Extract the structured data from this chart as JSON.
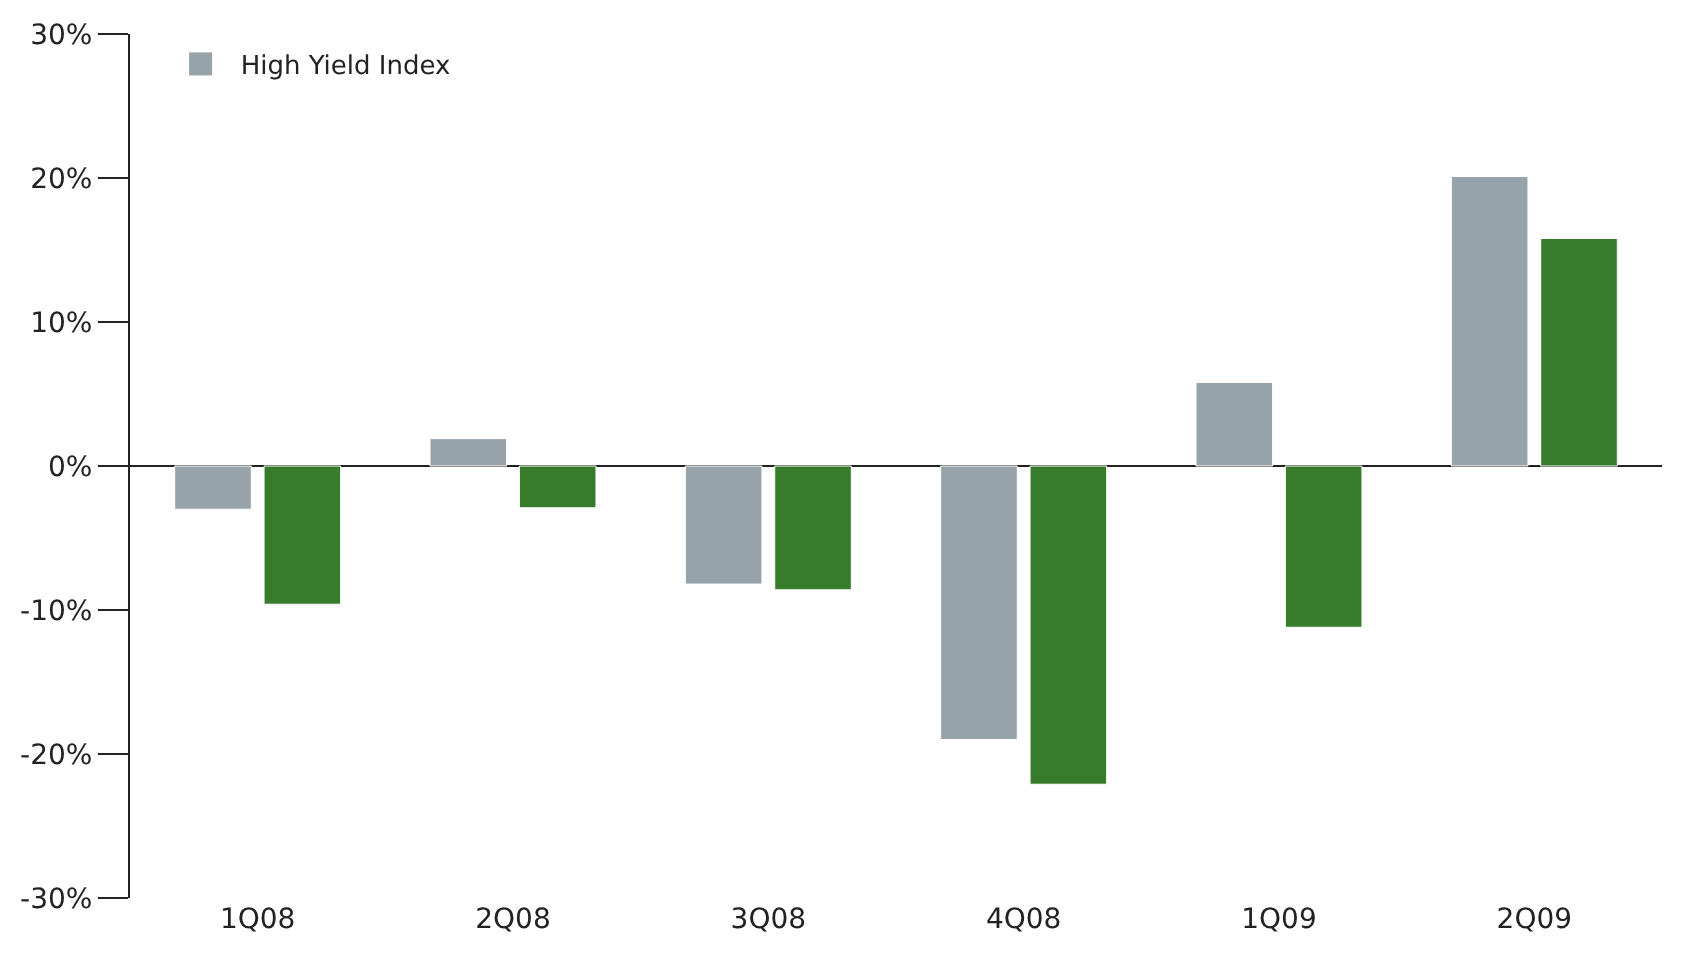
{
  "chart_data": {
    "type": "bar",
    "categories": [
      "1Q08",
      "2Q08",
      "3Q08",
      "4Q08",
      "1Q09",
      "2Q09"
    ],
    "series": [
      {
        "name": "High Yield Index",
        "color": "#97a3ab",
        "values": [
          -3.0,
          1.9,
          -8.2,
          -19.0,
          5.8,
          20.1
        ]
      },
      {
        "color": "#367c2b",
        "values": [
          -9.6,
          -2.9,
          -8.6,
          -22.1,
          -11.2,
          15.8
        ]
      }
    ],
    "ylim": [
      -30,
      30
    ],
    "yticks": [
      {
        "value": -30,
        "label": "-30%"
      },
      {
        "value": -20,
        "label": "-20%"
      },
      {
        "value": -10,
        "label": "-10%"
      },
      {
        "value": 0,
        "label": "0%"
      },
      {
        "value": 10,
        "label": "10%"
      },
      {
        "value": 20,
        "label": "20%"
      },
      {
        "value": 30,
        "label": "30%"
      }
    ],
    "legend": "top left"
  }
}
